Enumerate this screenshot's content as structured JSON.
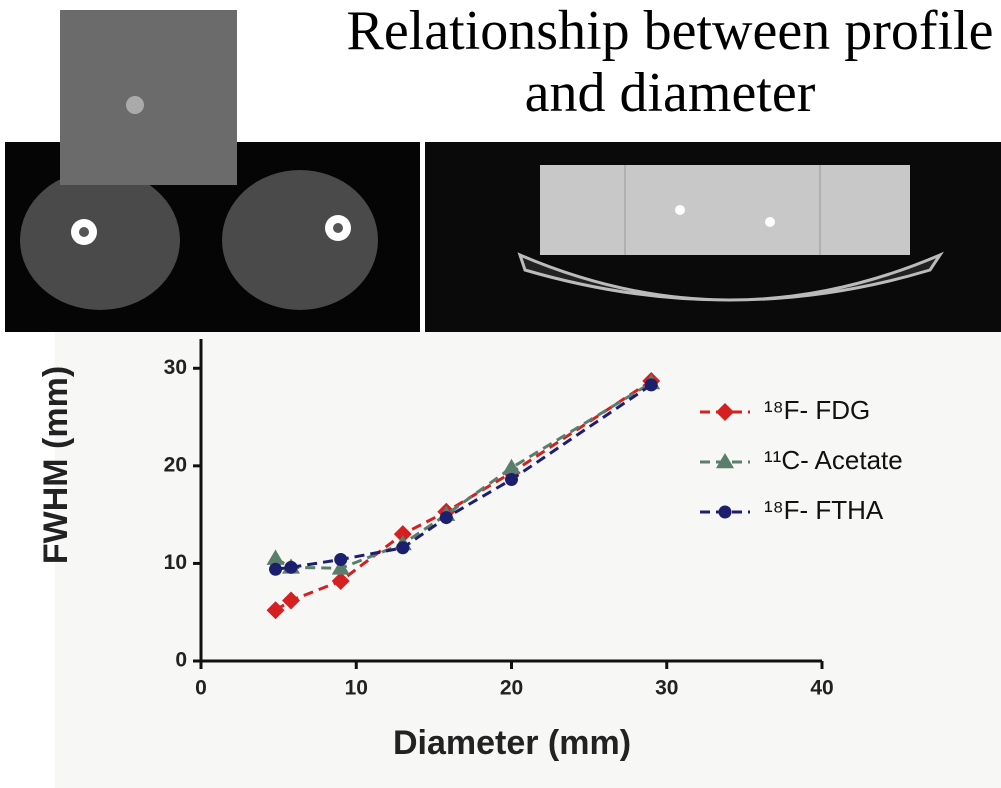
{
  "chart_data": {
    "type": "line",
    "title": "Relationship between profile and diameter",
    "x_label": "Diameter (mm)",
    "y_label": "FWHM (mm)",
    "xlim": [
      0,
      40
    ],
    "xticks": [
      0,
      10,
      20,
      30,
      40
    ],
    "ylim": [
      0,
      33
    ],
    "yticks": [
      0,
      10,
      20,
      30
    ],
    "legend": "right",
    "series": [
      {
        "name": "¹⁸F- FDG",
        "color": "#d42020",
        "marker": "diamond",
        "x": [
          4.8,
          5.8,
          9,
          13,
          15.8,
          20,
          29
        ],
        "values": [
          5.2,
          6.2,
          8.2,
          13.0,
          15.3,
          19.3,
          28.7
        ]
      },
      {
        "name": "¹¹C- Acetate",
        "color": "#5b7d6b",
        "marker": "triangle",
        "x": [
          4.8,
          5.8,
          9,
          13,
          15.8,
          20,
          29
        ],
        "values": [
          10.5,
          9.6,
          9.5,
          12.0,
          15.0,
          19.8,
          28.5
        ]
      },
      {
        "name": "¹⁸F- FTHA",
        "color": "#1c1f6e",
        "marker": "circle",
        "x": [
          4.8,
          5.8,
          9,
          13,
          15.8,
          20,
          29
        ],
        "values": [
          9.4,
          9.6,
          10.4,
          11.6,
          14.7,
          18.6,
          28.3
        ]
      }
    ]
  }
}
